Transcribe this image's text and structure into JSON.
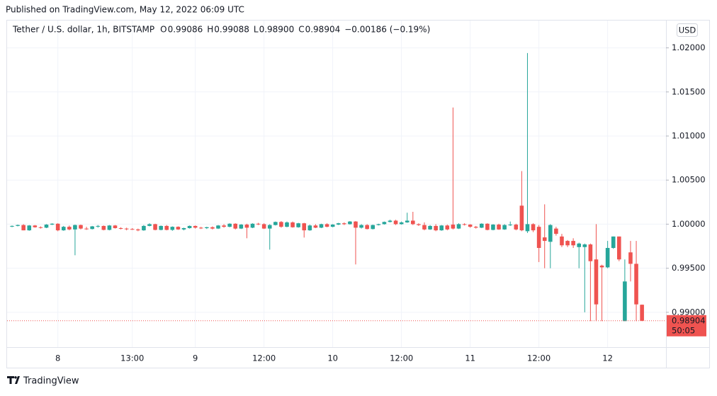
{
  "header": {
    "published": "Published on TradingView.com, May 12, 2022 06:09 UTC"
  },
  "footer": {
    "brand": "TradingView"
  },
  "chart_data": {
    "type": "candlestick",
    "title": "Tether / U.S. dollar, 1h, BITSTAMP",
    "legend": {
      "o": "O",
      "open": "0.99086",
      "h": "H",
      "high": "0.99088",
      "l": "L",
      "low": "0.98900",
      "c": "C",
      "close": "0.98904",
      "change": "−0.00186 (−0.19%)"
    },
    "currency": "USD",
    "price_label": "0.98904",
    "countdown": "50:05",
    "up_color": "#26a69a",
    "down_color": "#ef5350",
    "grid": true,
    "ylim": [
      0.98605,
      1.0231
    ],
    "yticks": [
      {
        "value": 1.02,
        "label": "1.02000"
      },
      {
        "value": 1.015,
        "label": "1.01500"
      },
      {
        "value": 1.01,
        "label": "1.01000"
      },
      {
        "value": 1.005,
        "label": "1.00500"
      },
      {
        "value": 1.0,
        "label": "1.00000"
      },
      {
        "value": 0.995,
        "label": "0.99500"
      },
      {
        "value": 0.99,
        "label": "0.99000"
      }
    ],
    "categories": [
      null,
      null,
      null,
      null,
      null,
      null,
      null,
      null,
      "8",
      null,
      null,
      null,
      null,
      null,
      null,
      null,
      null,
      null,
      null,
      null,
      null,
      "13:00",
      null,
      null,
      null,
      null,
      null,
      null,
      null,
      null,
      null,
      null,
      "9",
      null,
      null,
      null,
      null,
      null,
      null,
      null,
      null,
      null,
      null,
      null,
      "12:00",
      null,
      null,
      null,
      null,
      null,
      null,
      null,
      null,
      null,
      null,
      null,
      "10",
      null,
      null,
      null,
      null,
      null,
      null,
      null,
      null,
      null,
      null,
      null,
      "12:00",
      null,
      null,
      null,
      null,
      null,
      null,
      null,
      null,
      null,
      null,
      null,
      "11",
      null,
      null,
      null,
      null,
      null,
      null,
      null,
      null,
      null,
      null,
      null,
      "12:00",
      null,
      null,
      null,
      null,
      null,
      null,
      null,
      null,
      null,
      null,
      null,
      "12",
      null,
      null,
      null,
      null,
      null,
      null
    ],
    "ohlc": [
      [
        0.99975,
        0.99985,
        0.99965,
        0.9998
      ],
      [
        0.9998,
        0.99995,
        0.99975,
        0.9999
      ],
      [
        0.9999,
        1.0,
        0.9993,
        0.9993
      ],
      [
        0.9993,
        0.9999,
        0.99925,
        0.99985
      ],
      [
        0.99985,
        0.9999,
        0.9996,
        0.99965
      ],
      [
        0.99965,
        0.99975,
        0.9995,
        0.9996
      ],
      [
        0.9996,
        1.0,
        0.99955,
        0.99995
      ],
      [
        0.99995,
        1.0001,
        0.9999,
        1.00005
      ],
      [
        1.00005,
        1.0001,
        0.9992,
        0.9993
      ],
      [
        0.9993,
        0.9998,
        0.99925,
        0.9997
      ],
      [
        0.9997,
        0.99985,
        0.9993,
        0.9994
      ],
      [
        0.9994,
        0.99995,
        0.99647,
        0.9999
      ],
      [
        0.9999,
        0.99995,
        0.9994,
        0.9995
      ],
      [
        0.9995,
        0.9997,
        0.99935,
        0.99945
      ],
      [
        0.99945,
        0.9998,
        0.9994,
        0.99975
      ],
      [
        0.99975,
        0.9999,
        0.9996,
        0.9998
      ],
      [
        0.9998,
        0.99985,
        0.9993,
        0.99935
      ],
      [
        0.99935,
        0.9999,
        0.9993,
        0.99985
      ],
      [
        0.99985,
        0.9999,
        0.9995,
        0.99955
      ],
      [
        0.99955,
        0.99965,
        0.9994,
        0.9995
      ],
      [
        0.9995,
        0.9996,
        0.9993,
        0.99945
      ],
      [
        0.99945,
        0.99955,
        0.99935,
        0.9994
      ],
      [
        0.9994,
        0.9995,
        0.9992,
        0.9993
      ],
      [
        0.9993,
        0.9999,
        0.99925,
        0.9998
      ],
      [
        0.9998,
        1.0001,
        0.99975,
        1.0
      ],
      [
        1.0,
        1.00005,
        0.9993,
        0.99935
      ],
      [
        0.99935,
        0.99985,
        0.9993,
        0.9998
      ],
      [
        0.9998,
        0.9999,
        0.9993,
        0.99935
      ],
      [
        0.99935,
        0.99975,
        0.99925,
        0.9997
      ],
      [
        0.9997,
        0.99975,
        0.99935,
        0.9994
      ],
      [
        0.9994,
        0.9996,
        0.9993,
        0.99955
      ],
      [
        0.99955,
        0.99985,
        0.9995,
        0.9998
      ],
      [
        0.9998,
        0.99985,
        0.9995,
        0.9996
      ],
      [
        0.9996,
        0.9997,
        0.99945,
        0.99955
      ],
      [
        0.99955,
        0.9997,
        0.99945,
        0.99965
      ],
      [
        0.99965,
        0.99975,
        0.9994,
        0.9995
      ],
      [
        0.9995,
        0.9999,
        0.99945,
        0.99985
      ],
      [
        0.99985,
        1.0,
        0.9996,
        0.9997
      ],
      [
        0.9997,
        1.0001,
        0.99965,
        1.00005
      ],
      [
        1.00005,
        1.0001,
        0.9994,
        0.9995
      ],
      [
        0.9995,
        1.0,
        0.99945,
        0.99995
      ],
      [
        0.99995,
        1.00005,
        0.9984,
        0.9996
      ],
      [
        0.9996,
        1.0001,
        0.99955,
        1.00005
      ],
      [
        1.00005,
        1.00015,
        0.9999,
        1.0
      ],
      [
        1.0,
        1.0001,
        0.99945,
        0.9995
      ],
      [
        0.9995,
        1.0,
        0.99711,
        0.9999
      ],
      [
        0.9999,
        1.0003,
        0.99985,
        1.00025
      ],
      [
        1.00025,
        1.00035,
        0.9996,
        0.9997
      ],
      [
        0.9997,
        1.0003,
        0.99965,
        1.0002
      ],
      [
        1.0002,
        1.0003,
        0.9996,
        0.99965
      ],
      [
        0.99965,
        1.00015,
        0.9996,
        1.0001
      ],
      [
        1.0001,
        1.00015,
        0.99848,
        0.9993
      ],
      [
        0.9993,
        0.99995,
        0.99925,
        0.99985
      ],
      [
        0.99985,
        1.0,
        0.99955,
        0.9996
      ],
      [
        0.9996,
        1.00005,
        0.99955,
        1.0
      ],
      [
        1.0,
        1.0001,
        0.99965,
        0.9997
      ],
      [
        0.9997,
        1.0,
        0.99965,
        0.99995
      ],
      [
        0.99995,
        1.00015,
        0.9999,
        1.0001
      ],
      [
        1.0001,
        1.0002,
        0.9999,
        1.0
      ],
      [
        1.0,
        1.00035,
        0.99995,
        1.0003
      ],
      [
        1.0003,
        1.00035,
        0.99543,
        0.9996
      ],
      [
        0.9996,
        1.0,
        0.9995,
        0.9999
      ],
      [
        0.9999,
        1.0,
        0.9994,
        0.99945
      ],
      [
        0.99945,
        0.99995,
        0.9994,
        0.9999
      ],
      [
        0.9999,
        1.00005,
        0.99985,
        1.0
      ],
      [
        1.0,
        1.0003,
        0.99995,
        1.00025
      ],
      [
        1.00025,
        1.0005,
        1.0002,
        1.0004
      ],
      [
        1.0004,
        1.0005,
        0.9999,
        1.0
      ],
      [
        1.0,
        1.0003,
        0.99995,
        1.0002
      ],
      [
        1.0002,
        1.0013,
        1.00015,
        1.0004
      ],
      [
        1.0004,
        1.0014,
        0.9999,
        1.0
      ],
      [
        1.0,
        1.0001,
        0.9998,
        0.9999
      ],
      [
        0.9999,
        1.0002,
        0.9993,
        0.9994
      ],
      [
        0.9994,
        0.9999,
        0.99935,
        0.9998
      ],
      [
        0.9998,
        1.0,
        0.9992,
        0.9993
      ],
      [
        0.9993,
        0.9999,
        0.99925,
        0.99985
      ],
      [
        0.99985,
        0.99995,
        0.9993,
        0.9994
      ],
      [
        0.99995,
        1.01323,
        0.9994,
        0.9995
      ],
      [
        0.9995,
        1.0001,
        0.99945,
        1.0
      ],
      [
        1.0,
        1.0001,
        0.99985,
        0.99995
      ],
      [
        0.99995,
        1.0,
        0.9996,
        0.9997
      ],
      [
        0.9997,
        0.9998,
        0.9995,
        0.9996
      ],
      [
        0.9996,
        1.0001,
        0.99955,
        1.00005
      ],
      [
        1.00005,
        1.0001,
        0.9993,
        0.99935
      ],
      [
        0.99935,
        1.0,
        0.9993,
        0.99995
      ],
      [
        0.99995,
        1.00005,
        0.99935,
        0.9994
      ],
      [
        0.9994,
        1.0,
        0.99935,
        0.9999
      ],
      [
        0.9999,
        1.0003,
        0.9998,
        0.99995
      ],
      [
        0.99995,
        1.00005,
        0.9993,
        0.9994
      ],
      [
        1.0021,
        1.00602,
        0.9992,
        0.9993
      ],
      [
        0.9992,
        1.01941,
        0.999,
        1.0
      ],
      [
        1.0,
        1.0001,
        0.9991,
        0.9993
      ],
      [
        0.9997,
        0.9999,
        0.9957,
        0.9973
      ],
      [
        0.9985,
        1.00225,
        0.995,
        0.9981
      ],
      [
        0.998,
        1.0,
        0.995,
        0.9999
      ],
      [
        0.9995,
        0.9997,
        0.9987,
        0.9989
      ],
      [
        0.9986,
        0.9989,
        0.9974,
        0.9976
      ],
      [
        0.9981,
        0.9982,
        0.9974,
        0.9976
      ],
      [
        0.9981,
        0.9984,
        0.9973,
        0.9976
      ],
      [
        0.9974,
        0.9979,
        0.995,
        0.9978
      ],
      [
        0.9974,
        0.9978,
        0.99,
        0.9977
      ],
      [
        0.9977,
        0.9978,
        0.989,
        0.9958
      ],
      [
        0.996,
        1.0,
        0.989,
        0.9909
      ],
      [
        0.9953,
        0.9954,
        0.989,
        0.9951
      ],
      [
        0.9951,
        0.9981,
        0.995,
        0.9973
      ],
      [
        0.9973,
        0.9986,
        0.9972,
        0.9986
      ],
      [
        0.9986,
        0.9986,
        0.9958,
        0.996
      ],
      [
        0.989,
        0.996,
        0.989,
        0.9935
      ],
      [
        0.9968,
        0.9981,
        0.9935,
        0.9955
      ],
      [
        0.9955,
        0.9981,
        0.989,
        0.9909
      ],
      [
        0.99086,
        0.99088,
        0.989,
        0.98904
      ]
    ]
  }
}
